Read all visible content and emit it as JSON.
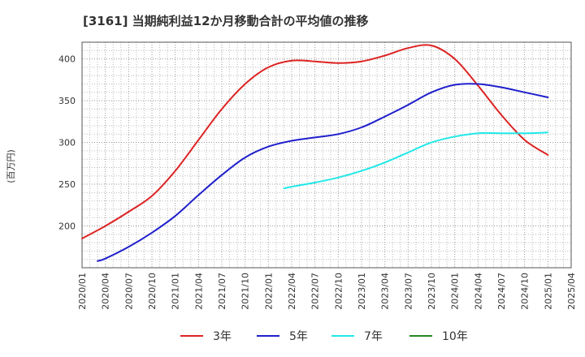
{
  "chart_data": {
    "type": "line",
    "title": "[3161]  当期純利益12か月移動合計の平均値の推移",
    "ylabel": "(百万円)",
    "xlabel": "",
    "ylim": [
      150,
      420
    ],
    "yticks": [
      200,
      250,
      300,
      350,
      400
    ],
    "grid": true,
    "legend_position": "bottom",
    "x_categories": [
      "2020/01",
      "2020/04",
      "2020/07",
      "2020/10",
      "2021/01",
      "2021/04",
      "2021/07",
      "2021/10",
      "2022/01",
      "2022/04",
      "2022/07",
      "2022/10",
      "2023/01",
      "2023/04",
      "2023/07",
      "2023/10",
      "2024/01",
      "2024/04",
      "2024/07",
      "2024/10",
      "2025/01",
      "2025/04"
    ],
    "series": [
      {
        "name": "3年",
        "color": "#dd2222",
        "points": [
          [
            0,
            185
          ],
          [
            1,
            200
          ],
          [
            2,
            217
          ],
          [
            3,
            236
          ],
          [
            4,
            266
          ],
          [
            5,
            303
          ],
          [
            6,
            340
          ],
          [
            7,
            370
          ],
          [
            8,
            390
          ],
          [
            9,
            398
          ],
          [
            10,
            397
          ],
          [
            11,
            395
          ],
          [
            12,
            397
          ],
          [
            13,
            404
          ],
          [
            14,
            413
          ],
          [
            15,
            416
          ],
          [
            16,
            400
          ],
          [
            17,
            368
          ],
          [
            18,
            333
          ],
          [
            19,
            303
          ],
          [
            20,
            285
          ]
        ]
      },
      {
        "name": "5年",
        "color": "#1f1fcc",
        "points": [
          [
            0.667,
            158
          ],
          [
            1,
            161
          ],
          [
            2,
            175
          ],
          [
            3,
            192
          ],
          [
            4,
            212
          ],
          [
            5,
            237
          ],
          [
            6,
            261
          ],
          [
            7,
            282
          ],
          [
            8,
            295
          ],
          [
            9,
            302
          ],
          [
            10,
            306
          ],
          [
            11,
            310
          ],
          [
            12,
            318
          ],
          [
            13,
            331
          ],
          [
            14,
            345
          ],
          [
            15,
            360
          ],
          [
            16,
            369
          ],
          [
            17,
            370
          ],
          [
            18,
            366
          ],
          [
            19,
            360
          ],
          [
            20,
            354
          ]
        ]
      },
      {
        "name": "7年",
        "color": "#22e8e8",
        "points": [
          [
            8.667,
            245
          ],
          [
            9,
            247
          ],
          [
            10,
            252
          ],
          [
            11,
            258
          ],
          [
            12,
            266
          ],
          [
            13,
            276
          ],
          [
            14,
            288
          ],
          [
            15,
            300
          ],
          [
            16,
            307
          ],
          [
            17,
            311
          ],
          [
            18,
            311
          ],
          [
            19,
            311
          ],
          [
            20,
            312
          ]
        ]
      },
      {
        "name": "10年",
        "color": "#228822",
        "points": []
      }
    ]
  }
}
